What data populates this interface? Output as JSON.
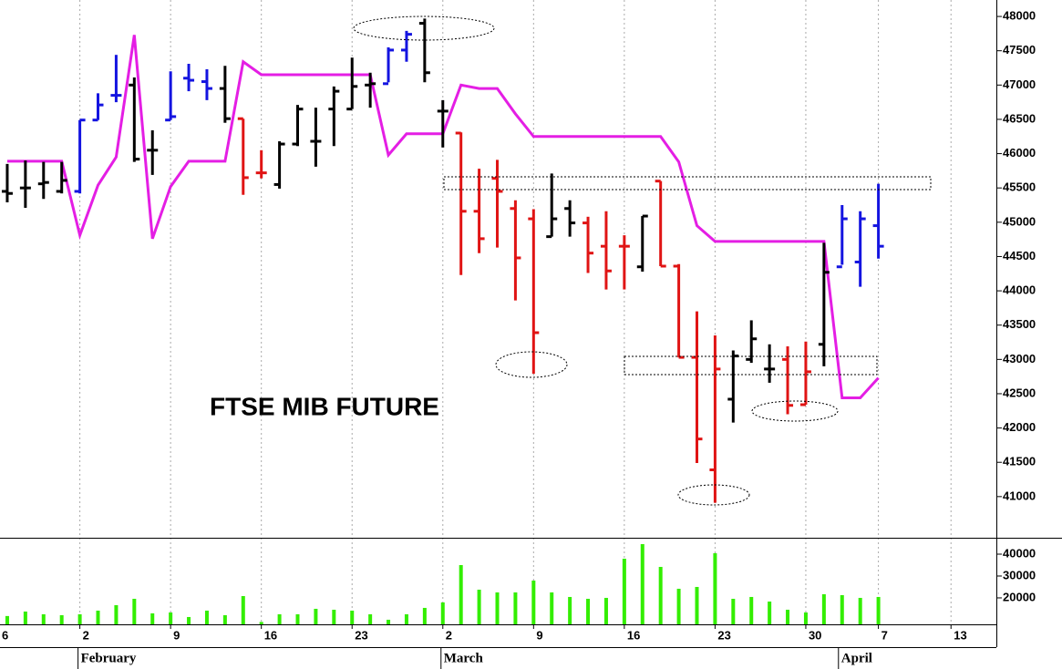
{
  "chart_data": [
    {
      "type": "ohlc",
      "title": "FTSE MIB FUTURE",
      "x": [
        1,
        2,
        3,
        4,
        5,
        6,
        7,
        8,
        9,
        10,
        11,
        12,
        13,
        14,
        15,
        16,
        17,
        18,
        19,
        20,
        21,
        22,
        23,
        24,
        25,
        26,
        27,
        28,
        29,
        30,
        31,
        32,
        33,
        34,
        35,
        36,
        37,
        38,
        39,
        40,
        41,
        42,
        43,
        44,
        45,
        46,
        47,
        48,
        49
      ],
      "open": [
        45450,
        45500,
        45560,
        45450,
        45450,
        46490,
        46850,
        47000,
        46050,
        46490,
        47100,
        47050,
        46950,
        46510,
        45720,
        45550,
        46140,
        46180,
        46650,
        46650,
        47000,
        47020,
        47510,
        47900,
        46620,
        46300,
        45160,
        45640,
        45200,
        45050,
        44790,
        45200,
        44990,
        44650,
        44650,
        44350,
        45600,
        44360,
        43030,
        41390,
        42420,
        43000,
        42860,
        43000,
        42340,
        43220,
        44350,
        44420,
        44950
      ],
      "high": [
        45850,
        45900,
        45880,
        45880,
        46490,
        46880,
        47440,
        47110,
        46340,
        47200,
        47310,
        47230,
        47280,
        46510,
        46050,
        46180,
        46710,
        46670,
        46980,
        47400,
        47180,
        47550,
        47790,
        47970,
        46780,
        46310,
        45780,
        45910,
        45320,
        45190,
        45710,
        45320,
        45080,
        45160,
        44810,
        45090,
        45600,
        44390,
        43700,
        43350,
        43130,
        43570,
        43220,
        43190,
        43260,
        44700,
        45250,
        45160,
        45560
      ],
      "low": [
        45290,
        45210,
        45340,
        45420,
        45420,
        46490,
        46750,
        45880,
        45690,
        46490,
        46910,
        46780,
        46450,
        45400,
        45640,
        45490,
        46110,
        45810,
        46110,
        46650,
        46670,
        47040,
        47340,
        47040,
        46090,
        44230,
        44550,
        44630,
        43860,
        42790,
        44790,
        44790,
        44260,
        44020,
        44020,
        44280,
        44360,
        43030,
        41490,
        40910,
        42080,
        42950,
        42660,
        42200,
        42340,
        42900,
        44380,
        44060,
        44470
      ],
      "close": [
        45420,
        45500,
        45580,
        45610,
        46490,
        46710,
        46850,
        45920,
        46050,
        46540,
        47070,
        46950,
        46510,
        45650,
        45720,
        46140,
        46650,
        46180,
        46910,
        46980,
        47020,
        47510,
        47740,
        47180,
        46620,
        45160,
        44760,
        45450,
        44480,
        43390,
        45050,
        44990,
        44550,
        44290,
        44650,
        45090,
        44360,
        43030,
        41840,
        42860,
        43050,
        43300,
        42860,
        42330,
        42820,
        44270,
        45050,
        45050,
        44650
      ],
      "colors": [
        "#000000",
        "#000000",
        "#000000",
        "#000000",
        "#1414e0",
        "#1414e0",
        "#1414e0",
        "#000000",
        "#000000",
        "#1414e0",
        "#1414e0",
        "#1414e0",
        "#000000",
        "#e01414",
        "#e01414",
        "#000000",
        "#000000",
        "#000000",
        "#000000",
        "#000000",
        "#000000",
        "#1414e0",
        "#1414e0",
        "#000000",
        "#000000",
        "#e01414",
        "#e01414",
        "#e01414",
        "#e01414",
        "#e01414",
        "#000000",
        "#000000",
        "#e01414",
        "#e01414",
        "#e01414",
        "#000000",
        "#e01414",
        "#e01414",
        "#e01414",
        "#e01414",
        "#000000",
        "#000000",
        "#000000",
        "#e01414",
        "#e01414",
        "#000000",
        "#1414e0",
        "#1414e0",
        "#1414e0"
      ],
      "line": {
        "color": "#e41ee4",
        "values": [
          45890,
          45890,
          45890,
          45890,
          44810,
          45540,
          45950,
          47730,
          44760,
          45520,
          45890,
          45890,
          45890,
          47340,
          47150,
          47150,
          47150,
          47150,
          47150,
          47150,
          47150,
          45980,
          46290,
          46290,
          46290,
          47000,
          46950,
          46950,
          46580,
          46250,
          46250,
          46250,
          46250,
          46250,
          46250,
          46250,
          46250,
          45880,
          44950,
          44720,
          44720,
          44720,
          44720,
          44720,
          44720,
          44720,
          42440,
          42440,
          42730
        ]
      },
      "xlim": [
        0.6,
        55.5
      ],
      "xticks": [
        {
          "value": 0,
          "label": "6"
        },
        {
          "value": 5,
          "label": "2"
        },
        {
          "value": 10,
          "label": "9"
        },
        {
          "value": 15,
          "label": "16"
        },
        {
          "value": 20,
          "label": "23"
        },
        {
          "value": 25,
          "label": "2"
        },
        {
          "value": 30,
          "label": "9"
        },
        {
          "value": 35,
          "label": "16"
        },
        {
          "value": 40,
          "label": "23"
        },
        {
          "value": 45,
          "label": "30"
        },
        {
          "value": 49,
          "label": "7"
        },
        {
          "value": 53,
          "label": "13"
        }
      ],
      "month_labels": [
        {
          "value": 5,
          "label": "February"
        },
        {
          "value": 25,
          "label": "March"
        },
        {
          "value": 46.9,
          "label": "April"
        }
      ],
      "ylim": [
        40400,
        48240
      ],
      "yticks": [
        41000,
        41500,
        42000,
        42500,
        43000,
        43500,
        44000,
        44500,
        45000,
        45500,
        46000,
        46500,
        47000,
        47500,
        48000
      ],
      "grid": true
    },
    {
      "type": "bar",
      "x": [
        1,
        2,
        3,
        4,
        5,
        6,
        7,
        8,
        9,
        10,
        11,
        12,
        13,
        14,
        15,
        16,
        17,
        18,
        19,
        20,
        21,
        22,
        23,
        24,
        25,
        26,
        27,
        28,
        29,
        30,
        31,
        32,
        33,
        34,
        35,
        36,
        37,
        38,
        39,
        40,
        41,
        42,
        43,
        44,
        45,
        46,
        47,
        48,
        49
      ],
      "values": [
        11700,
        13750,
        12500,
        12080,
        12500,
        14170,
        16670,
        19580,
        12920,
        13330,
        11250,
        14170,
        12080,
        20830,
        9000,
        12500,
        12500,
        15000,
        14580,
        14170,
        12500,
        10000,
        12500,
        15420,
        17920,
        35000,
        23750,
        22500,
        22500,
        27920,
        22500,
        20420,
        19580,
        20000,
        37920,
        44580,
        34170,
        24170,
        25000,
        40420,
        19580,
        20420,
        18330,
        14580,
        13330,
        21670,
        21250,
        20000,
        20420
      ],
      "color": "#33ee00",
      "xlim": [
        0.6,
        55.5
      ],
      "ylim": [
        7900,
        47500
      ],
      "yticks": [
        20000,
        30000,
        40000
      ]
    }
  ]
}
